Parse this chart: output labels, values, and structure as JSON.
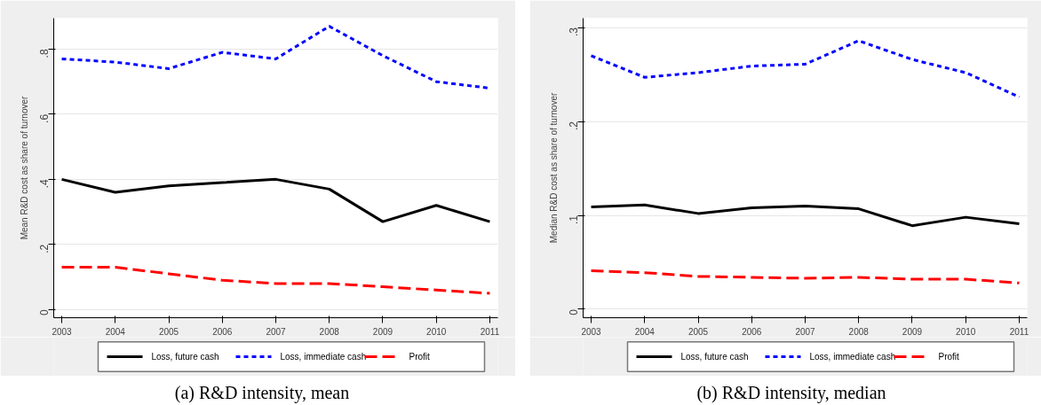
{
  "chart_data": [
    {
      "type": "line",
      "ylabel": "Mean R&D cost as share of turnover",
      "annotations": [
        "(a) R&D intensity, mean"
      ],
      "x": [
        2003,
        2004,
        2005,
        2006,
        2007,
        2008,
        2009,
        2010,
        2011
      ],
      "series": [
        {
          "name": "Loss, future cash",
          "color": "#000000",
          "line_style": "solid",
          "values": [
            0.4,
            0.36,
            0.38,
            0.39,
            0.4,
            0.37,
            0.27,
            0.32,
            0.27
          ]
        },
        {
          "name": "Loss, immediate cash",
          "color": "#0000ff",
          "line_style": "dotted",
          "values": [
            0.77,
            0.76,
            0.74,
            0.79,
            0.77,
            0.87,
            0.78,
            0.7,
            0.68
          ]
        },
        {
          "name": "Profit",
          "color": "#ff0000",
          "line_style": "dashed",
          "values": [
            0.13,
            0.13,
            0.11,
            0.09,
            0.08,
            0.08,
            0.07,
            0.06,
            0.05
          ]
        }
      ],
      "xlim": [
        2002.85,
        2011.15
      ],
      "ylim": [
        -0.025,
        0.895
      ],
      "xticks": [
        2003,
        2004,
        2005,
        2006,
        2007,
        2008,
        2009,
        2010,
        2011
      ],
      "yticks": [
        0,
        {
          "value": 0.2,
          "label": ".2"
        },
        {
          "value": 0.4,
          "label": ".4"
        },
        {
          "value": 0.6,
          "label": ".6"
        },
        {
          "value": 0.8,
          "label": ".8"
        }
      ],
      "grid": "y",
      "legend": "bottom"
    },
    {
      "type": "line",
      "ylabel": "Median R&D cost as share of turnover",
      "annotations": [
        "(b) R&D intensity, median"
      ],
      "x": [
        2003,
        2004,
        2005,
        2006,
        2007,
        2008,
        2009,
        2010,
        2011
      ],
      "series": [
        {
          "name": "Loss, future cash",
          "color": "#000000",
          "line_style": "solid",
          "values": [
            0.109,
            0.111,
            0.102,
            0.108,
            0.11,
            0.107,
            0.089,
            0.098,
            0.091
          ]
        },
        {
          "name": "Loss, immediate cash",
          "color": "#0000ff",
          "line_style": "dotted",
          "values": [
            0.27,
            0.247,
            0.252,
            0.259,
            0.261,
            0.286,
            0.266,
            0.252,
            0.226
          ]
        },
        {
          "name": "Profit",
          "color": "#ff0000",
          "line_style": "dashed",
          "values": [
            0.041,
            0.039,
            0.035,
            0.034,
            0.033,
            0.034,
            0.032,
            0.032,
            0.028
          ]
        }
      ],
      "xlim": [
        2002.85,
        2011.15
      ],
      "ylim": [
        -0.009,
        0.31
      ],
      "xticks": [
        2003,
        2004,
        2005,
        2006,
        2007,
        2008,
        2009,
        2010,
        2011
      ],
      "yticks": [
        0,
        {
          "value": 0.1,
          "label": ".1"
        },
        {
          "value": 0.2,
          "label": ".2"
        },
        {
          "value": 0.3,
          "label": ".3"
        }
      ],
      "grid": "y",
      "legend": "bottom"
    }
  ]
}
